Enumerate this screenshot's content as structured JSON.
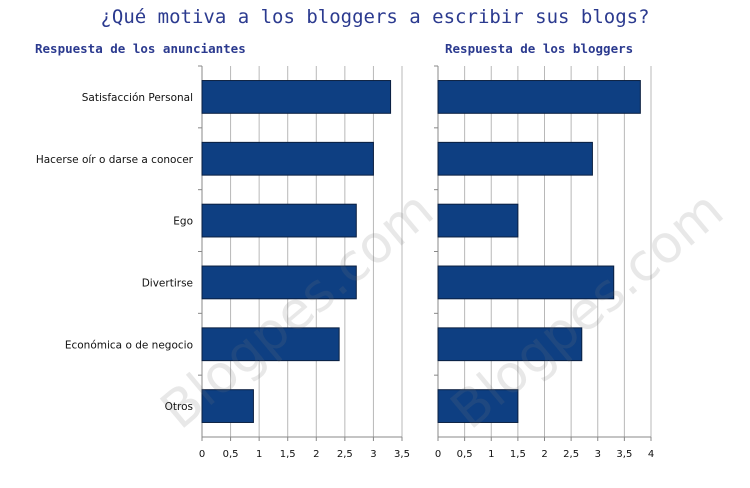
{
  "page": {
    "title": "¿Qué motiva a los bloggers a escribir sus blogs?",
    "watermark": "Blogpes.com"
  },
  "chart_data": [
    {
      "type": "bar",
      "orientation": "horizontal",
      "title": "Respuesta de los anunciantes",
      "categories": [
        "Satisfacción Personal",
        "Hacerse oír o darse a conocer",
        "Ego",
        "Divertirse",
        "Económica o de negocio",
        "Otros"
      ],
      "values": [
        3.3,
        3.0,
        2.7,
        2.7,
        2.4,
        0.9
      ],
      "xlim": [
        0,
        3.5
      ],
      "ticks": [
        "0",
        "0,5",
        "1",
        "1,5",
        "2",
        "2,5",
        "3",
        "3,5"
      ],
      "grid": "vertical",
      "bar_color": "#0e3f82"
    },
    {
      "type": "bar",
      "orientation": "horizontal",
      "title": "Respuesta de los bloggers",
      "categories": [
        "Satisfacción Personal",
        "Hacerse oír o darse a conocer",
        "Ego",
        "Divertirse",
        "Económica o de negocio",
        "Otros"
      ],
      "values": [
        3.8,
        2.9,
        1.5,
        3.3,
        2.7,
        1.5
      ],
      "xlim": [
        0,
        4
      ],
      "ticks": [
        "0",
        "0,5",
        "1",
        "1,5",
        "2",
        "2,5",
        "3",
        "3,5",
        "4"
      ],
      "grid": "vertical",
      "bar_color": "#0e3f82"
    }
  ]
}
